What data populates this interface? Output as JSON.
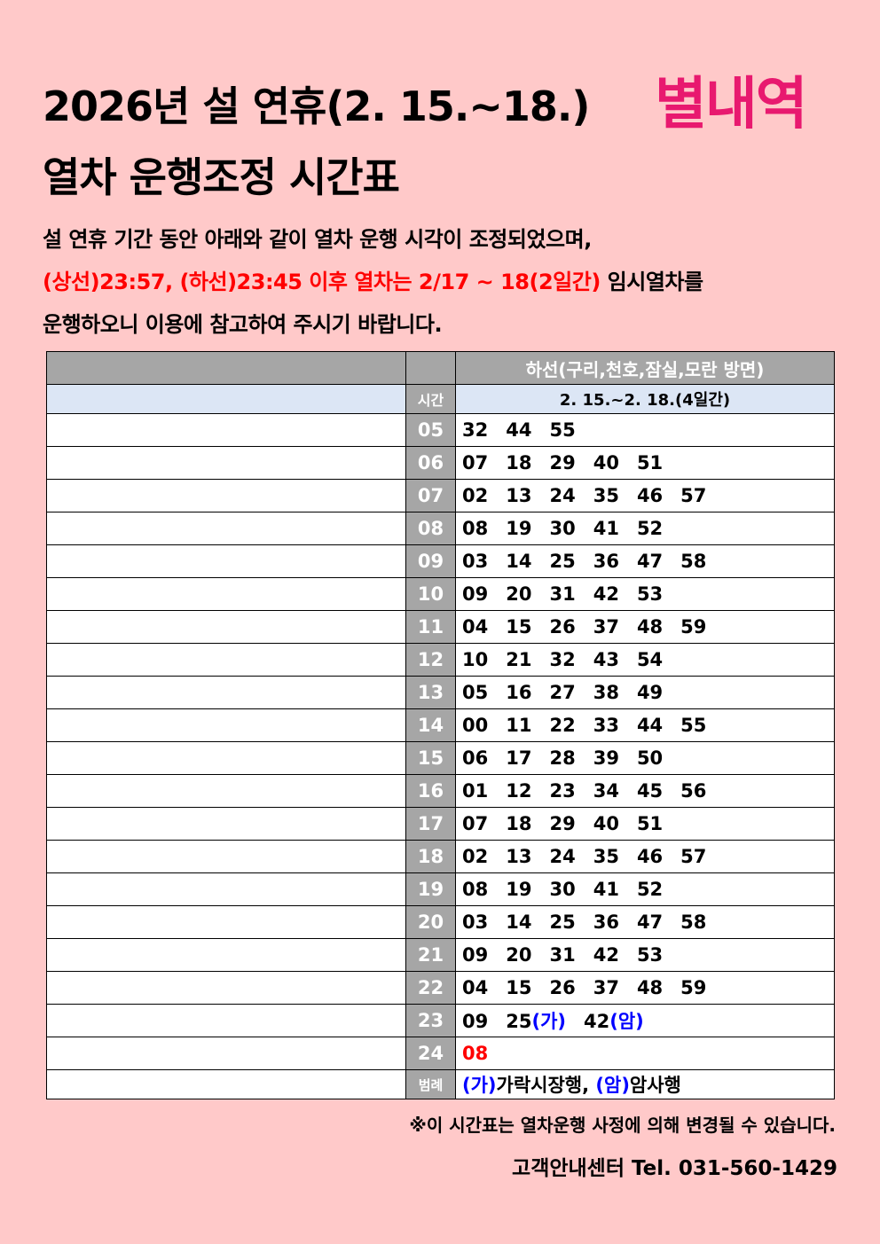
{
  "header": {
    "title_line1": "2026년 설 연휴(2. 15.~18.)",
    "station": "별내역",
    "title_line2": "열차 운행조정 시간표"
  },
  "description": {
    "line1": "설 연휴 기간 동안 아래와 같이 열차 운행 시각이 조정되었으며,",
    "line2_red": "(상선)23:57, (하선)23:45 이후 열차는 2/17 ~ 18(2일간)",
    "line2_black": " 임시열차를",
    "line3": "운행하오니 이용에 참고하여 주시기 바랍니다."
  },
  "table": {
    "direction_header": "하선(구리,천호,잠실,모란 방면)",
    "hour_label": "시간",
    "period": "2. 15.~2. 18.(4일간)",
    "rows": [
      {
        "hour": "05",
        "minutes": [
          {
            "m": "32"
          },
          {
            "m": "44"
          },
          {
            "m": "55"
          }
        ]
      },
      {
        "hour": "06",
        "minutes": [
          {
            "m": "07"
          },
          {
            "m": "18"
          },
          {
            "m": "29"
          },
          {
            "m": "40"
          },
          {
            "m": "51"
          }
        ]
      },
      {
        "hour": "07",
        "minutes": [
          {
            "m": "02"
          },
          {
            "m": "13"
          },
          {
            "m": "24"
          },
          {
            "m": "35"
          },
          {
            "m": "46"
          },
          {
            "m": "57"
          }
        ]
      },
      {
        "hour": "08",
        "minutes": [
          {
            "m": "08"
          },
          {
            "m": "19"
          },
          {
            "m": "30"
          },
          {
            "m": "41"
          },
          {
            "m": "52"
          }
        ]
      },
      {
        "hour": "09",
        "minutes": [
          {
            "m": "03"
          },
          {
            "m": "14"
          },
          {
            "m": "25"
          },
          {
            "m": "36"
          },
          {
            "m": "47"
          },
          {
            "m": "58"
          }
        ]
      },
      {
        "hour": "10",
        "minutes": [
          {
            "m": "09"
          },
          {
            "m": "20"
          },
          {
            "m": "31"
          },
          {
            "m": "42"
          },
          {
            "m": "53"
          }
        ]
      },
      {
        "hour": "11",
        "minutes": [
          {
            "m": "04"
          },
          {
            "m": "15"
          },
          {
            "m": "26"
          },
          {
            "m": "37"
          },
          {
            "m": "48"
          },
          {
            "m": "59"
          }
        ]
      },
      {
        "hour": "12",
        "minutes": [
          {
            "m": "10"
          },
          {
            "m": "21"
          },
          {
            "m": "32"
          },
          {
            "m": "43"
          },
          {
            "m": "54"
          }
        ]
      },
      {
        "hour": "13",
        "minutes": [
          {
            "m": "05"
          },
          {
            "m": "16"
          },
          {
            "m": "27"
          },
          {
            "m": "38"
          },
          {
            "m": "49"
          }
        ]
      },
      {
        "hour": "14",
        "minutes": [
          {
            "m": "00"
          },
          {
            "m": "11"
          },
          {
            "m": "22"
          },
          {
            "m": "33"
          },
          {
            "m": "44"
          },
          {
            "m": "55"
          }
        ]
      },
      {
        "hour": "15",
        "minutes": [
          {
            "m": "06"
          },
          {
            "m": "17"
          },
          {
            "m": "28"
          },
          {
            "m": "39"
          },
          {
            "m": "50"
          }
        ]
      },
      {
        "hour": "16",
        "minutes": [
          {
            "m": "01"
          },
          {
            "m": "12"
          },
          {
            "m": "23"
          },
          {
            "m": "34"
          },
          {
            "m": "45"
          },
          {
            "m": "56"
          }
        ]
      },
      {
        "hour": "17",
        "minutes": [
          {
            "m": "07"
          },
          {
            "m": "18"
          },
          {
            "m": "29"
          },
          {
            "m": "40"
          },
          {
            "m": "51"
          }
        ]
      },
      {
        "hour": "18",
        "minutes": [
          {
            "m": "02"
          },
          {
            "m": "13"
          },
          {
            "m": "24"
          },
          {
            "m": "35"
          },
          {
            "m": "46"
          },
          {
            "m": "57"
          }
        ]
      },
      {
        "hour": "19",
        "minutes": [
          {
            "m": "08"
          },
          {
            "m": "19"
          },
          {
            "m": "30"
          },
          {
            "m": "41"
          },
          {
            "m": "52"
          }
        ]
      },
      {
        "hour": "20",
        "minutes": [
          {
            "m": "03"
          },
          {
            "m": "14"
          },
          {
            "m": "25"
          },
          {
            "m": "36"
          },
          {
            "m": "47"
          },
          {
            "m": "58"
          }
        ]
      },
      {
        "hour": "21",
        "minutes": [
          {
            "m": "09"
          },
          {
            "m": "20"
          },
          {
            "m": "31"
          },
          {
            "m": "42"
          },
          {
            "m": "53"
          }
        ]
      },
      {
        "hour": "22",
        "minutes": [
          {
            "m": "04"
          },
          {
            "m": "15"
          },
          {
            "m": "26"
          },
          {
            "m": "37"
          },
          {
            "m": "48"
          },
          {
            "m": "59"
          }
        ]
      },
      {
        "hour": "23",
        "minutes": [
          {
            "m": "09"
          },
          {
            "m": "25",
            "tag": "(가)"
          },
          {
            "m": "42",
            "tag": "(암)"
          }
        ]
      },
      {
        "hour": "24",
        "minutes": [
          {
            "m": "08",
            "special": true
          }
        ]
      }
    ],
    "legend_label": "범례",
    "legend": [
      {
        "tag": "(가)",
        "text": "가락시장행, "
      },
      {
        "tag": "(암)",
        "text": "암사행"
      }
    ]
  },
  "footer": {
    "note": "※이 시간표는 열차운행 사정에 의해 변경될 수 있습니다.",
    "contact": "고객안내센터 Tel. 031-560-1429"
  },
  "colors": {
    "background": "#ffc9c9",
    "station_accent": "#e8196f",
    "highlight_red": "#ff0000",
    "tag_blue": "#0000ff",
    "header_gray": "#a6a6a6",
    "subheader_blue": "#dce6f5"
  }
}
